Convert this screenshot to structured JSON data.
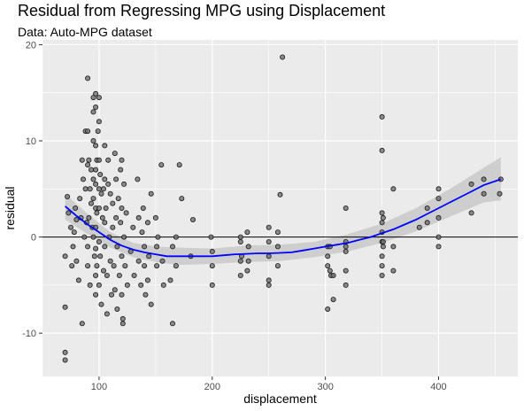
{
  "chart_data": {
    "type": "scatter",
    "title": "Residual from Regressing MPG using Displacement",
    "subtitle": "Data: Auto-MPG dataset",
    "xlabel": "displacement",
    "ylabel": "residual",
    "xlim": [
      50,
      470
    ],
    "ylim": [
      -14.5,
      20.5
    ],
    "x_ticks": [
      100,
      200,
      300,
      400
    ],
    "y_ticks": [
      -10,
      0,
      10,
      20
    ],
    "grid": true,
    "reference_line_y": 0,
    "colors": {
      "panel": "#ebebeb",
      "grid": "#ffffff",
      "point_fill": "#707070",
      "point_stroke": "#1a1a1a",
      "smooth": "#0000ff",
      "band": "#c9c9c9",
      "ref_line": "#000000"
    },
    "points": [
      [
        70,
        -2
      ],
      [
        70,
        -7.3
      ],
      [
        70,
        -12
      ],
      [
        70,
        -12.8
      ],
      [
        72,
        4.2
      ],
      [
        73,
        2.5
      ],
      [
        75,
        1
      ],
      [
        76,
        -3
      ],
      [
        77,
        -1
      ],
      [
        78,
        0.5
      ],
      [
        79,
        3
      ],
      [
        80,
        -2.5
      ],
      [
        80,
        1.8
      ],
      [
        82,
        -4.5
      ],
      [
        83,
        4
      ],
      [
        84,
        2
      ],
      [
        85,
        8
      ],
      [
        85,
        -9
      ],
      [
        86,
        6
      ],
      [
        87,
        0
      ],
      [
        88,
        11
      ],
      [
        88,
        5
      ],
      [
        89,
        1.5
      ],
      [
        90,
        16.5
      ],
      [
        90,
        11
      ],
      [
        90,
        7.5
      ],
      [
        90,
        -1
      ],
      [
        90,
        -3
      ],
      [
        91,
        8
      ],
      [
        91,
        2
      ],
      [
        92,
        5
      ],
      [
        92,
        -5
      ],
      [
        93,
        7
      ],
      [
        93,
        3.5
      ],
      [
        94,
        1
      ],
      [
        95,
        14.5
      ],
      [
        95,
        13
      ],
      [
        95,
        10
      ],
      [
        95,
        6
      ],
      [
        95,
        4
      ],
      [
        95,
        0
      ],
      [
        96,
        -2
      ],
      [
        97,
        14.9
      ],
      [
        97,
        13.5
      ],
      [
        97,
        9.5
      ],
      [
        97,
        7
      ],
      [
        97,
        5.5
      ],
      [
        97,
        3
      ],
      [
        97,
        1
      ],
      [
        97,
        -1.2
      ],
      [
        97,
        -4
      ],
      [
        97,
        -6
      ],
      [
        98,
        8
      ],
      [
        98,
        2.5
      ],
      [
        98,
        -3
      ],
      [
        99,
        11
      ],
      [
        100,
        14.5
      ],
      [
        100,
        12
      ],
      [
        100,
        8
      ],
      [
        100,
        5
      ],
      [
        100,
        3
      ],
      [
        100,
        -0.5
      ],
      [
        100,
        -5
      ],
      [
        101,
        6.5
      ],
      [
        101,
        -2
      ],
      [
        102,
        4.5
      ],
      [
        102,
        -7
      ],
      [
        103,
        2
      ],
      [
        104,
        5
      ],
      [
        104,
        -3.5
      ],
      [
        105,
        9.5
      ],
      [
        105,
        6
      ],
      [
        105,
        1.5
      ],
      [
        105,
        -1
      ],
      [
        106,
        3
      ],
      [
        107,
        -4
      ],
      [
        107,
        -8
      ],
      [
        108,
        8
      ],
      [
        108,
        5.5
      ],
      [
        109,
        0
      ],
      [
        110,
        4.5
      ],
      [
        110,
        -2.5
      ],
      [
        111,
        -6
      ],
      [
        112,
        3.5
      ],
      [
        112,
        1
      ],
      [
        113,
        -3
      ],
      [
        114,
        8.7
      ],
      [
        114,
        -5.5
      ],
      [
        115,
        6
      ],
      [
        115,
        2
      ],
      [
        116,
        -1
      ],
      [
        116,
        -7.5
      ],
      [
        117,
        4
      ],
      [
        118,
        -4
      ],
      [
        119,
        7
      ],
      [
        119,
        1.5
      ],
      [
        120,
        8
      ],
      [
        120,
        3
      ],
      [
        120,
        -2
      ],
      [
        120,
        -6
      ],
      [
        121,
        -8.5
      ],
      [
        121,
        -9
      ],
      [
        122,
        5.5
      ],
      [
        122,
        0
      ],
      [
        123,
        -3
      ],
      [
        124,
        2.5
      ],
      [
        125,
        -5
      ],
      [
        128,
        -1.5
      ],
      [
        130,
        1
      ],
      [
        131,
        -4
      ],
      [
        134,
        6
      ],
      [
        135,
        2
      ],
      [
        135,
        -2.5
      ],
      [
        137,
        -5
      ],
      [
        138,
        0.5
      ],
      [
        139,
        3
      ],
      [
        140,
        -1
      ],
      [
        140,
        -3
      ],
      [
        141,
        -6
      ],
      [
        143,
        1.5
      ],
      [
        143,
        -4.5
      ],
      [
        144,
        -2
      ],
      [
        146,
        4.5
      ],
      [
        146,
        -7
      ],
      [
        150,
        2
      ],
      [
        151,
        -1
      ],
      [
        151,
        -3
      ],
      [
        152,
        0
      ],
      [
        155,
        7.5
      ],
      [
        156,
        -2.5
      ],
      [
        157,
        -5
      ],
      [
        163,
        -4.5
      ],
      [
        165,
        -9
      ],
      [
        165,
        -1
      ],
      [
        168,
        0
      ],
      [
        168,
        -3
      ],
      [
        171,
        7.5
      ],
      [
        173,
        4
      ],
      [
        181,
        -2
      ],
      [
        183,
        1.8
      ],
      [
        199,
        0
      ],
      [
        200,
        -1.5
      ],
      [
        200,
        -3
      ],
      [
        200,
        -5
      ],
      [
        225,
        0
      ],
      [
        225,
        -0.5
      ],
      [
        225,
        -2.5
      ],
      [
        225,
        -4
      ],
      [
        226,
        -2
      ],
      [
        231,
        -3.5
      ],
      [
        231,
        0.5
      ],
      [
        232,
        -1
      ],
      [
        232,
        -2.5
      ],
      [
        250,
        -4.5
      ],
      [
        250,
        -2
      ],
      [
        250,
        -0.5
      ],
      [
        250,
        1
      ],
      [
        250,
        -5
      ],
      [
        258,
        -3
      ],
      [
        258,
        -1
      ],
      [
        258,
        0.5
      ],
      [
        260,
        4.4
      ],
      [
        262,
        18.7
      ],
      [
        302,
        -7.5
      ],
      [
        302,
        -3
      ],
      [
        302,
        -1
      ],
      [
        302,
        -2
      ],
      [
        304,
        -3.5
      ],
      [
        304,
        -1
      ],
      [
        305,
        -4
      ],
      [
        307,
        -6.5
      ],
      [
        307,
        -4
      ],
      [
        318,
        -3.5
      ],
      [
        318,
        -1.5
      ],
      [
        318,
        -0.5
      ],
      [
        318,
        -1
      ],
      [
        318,
        3
      ],
      [
        318,
        -5
      ],
      [
        350,
        12.5
      ],
      [
        350,
        9
      ],
      [
        350,
        2.5
      ],
      [
        350,
        1.5
      ],
      [
        350,
        0.5
      ],
      [
        350,
        -0.5
      ],
      [
        350,
        -2
      ],
      [
        350,
        -3
      ],
      [
        350,
        -4
      ],
      [
        351,
        -0.5
      ],
      [
        351,
        2
      ],
      [
        351,
        -1
      ],
      [
        360,
        5
      ],
      [
        360,
        -1
      ],
      [
        360,
        -3.5
      ],
      [
        383,
        1
      ],
      [
        390,
        3
      ],
      [
        390,
        1.5
      ],
      [
        400,
        4
      ],
      [
        400,
        2
      ],
      [
        400,
        0
      ],
      [
        400,
        -1
      ],
      [
        400,
        5
      ],
      [
        429,
        2.5
      ],
      [
        429,
        5.5
      ],
      [
        440,
        4.5
      ],
      [
        440,
        6
      ],
      [
        454,
        4.5
      ],
      [
        455,
        6
      ]
    ],
    "smooth_curve": [
      [
        70,
        3.2
      ],
      [
        80,
        2.2
      ],
      [
        90,
        1.3
      ],
      [
        100,
        0.5
      ],
      [
        110,
        -0.3
      ],
      [
        120,
        -0.9
      ],
      [
        130,
        -1.3
      ],
      [
        140,
        -1.6
      ],
      [
        150,
        -1.8
      ],
      [
        160,
        -2
      ],
      [
        170,
        -2
      ],
      [
        180,
        -2
      ],
      [
        190,
        -2
      ],
      [
        200,
        -2
      ],
      [
        210,
        -1.9
      ],
      [
        220,
        -1.8
      ],
      [
        230,
        -1.75
      ],
      [
        240,
        -1.7
      ],
      [
        250,
        -1.7
      ],
      [
        260,
        -1.65
      ],
      [
        270,
        -1.6
      ],
      [
        280,
        -1.4
      ],
      [
        290,
        -1.2
      ],
      [
        300,
        -1
      ],
      [
        310,
        -0.8
      ],
      [
        320,
        -0.6
      ],
      [
        330,
        -0.3
      ],
      [
        340,
        0
      ],
      [
        350,
        0.4
      ],
      [
        360,
        0.8
      ],
      [
        370,
        1.3
      ],
      [
        380,
        1.8
      ],
      [
        390,
        2.4
      ],
      [
        400,
        3
      ],
      [
        410,
        3.6
      ],
      [
        420,
        4.2
      ],
      [
        430,
        4.8
      ],
      [
        440,
        5.4
      ],
      [
        455,
        6
      ]
    ],
    "band_upper": [
      [
        70,
        4.5
      ],
      [
        90,
        2.4
      ],
      [
        110,
        0.5
      ],
      [
        130,
        -0.6
      ],
      [
        150,
        -1
      ],
      [
        170,
        -1.1
      ],
      [
        200,
        -1.2
      ],
      [
        230,
        -0.9
      ],
      [
        260,
        -0.8
      ],
      [
        290,
        -0.5
      ],
      [
        320,
        0.3
      ],
      [
        350,
        1.4
      ],
      [
        380,
        3
      ],
      [
        410,
        5
      ],
      [
        440,
        7.2
      ],
      [
        455,
        8.3
      ]
    ],
    "band_lower": [
      [
        70,
        1.8
      ],
      [
        90,
        0.3
      ],
      [
        110,
        -1.1
      ],
      [
        130,
        -2.1
      ],
      [
        150,
        -2.6
      ],
      [
        170,
        -2.9
      ],
      [
        200,
        -2.8
      ],
      [
        230,
        -2.6
      ],
      [
        260,
        -2.5
      ],
      [
        290,
        -2.1
      ],
      [
        320,
        -1.5
      ],
      [
        350,
        -0.6
      ],
      [
        380,
        0.6
      ],
      [
        410,
        2.1
      ],
      [
        440,
        3.6
      ],
      [
        455,
        3.8
      ]
    ]
  }
}
